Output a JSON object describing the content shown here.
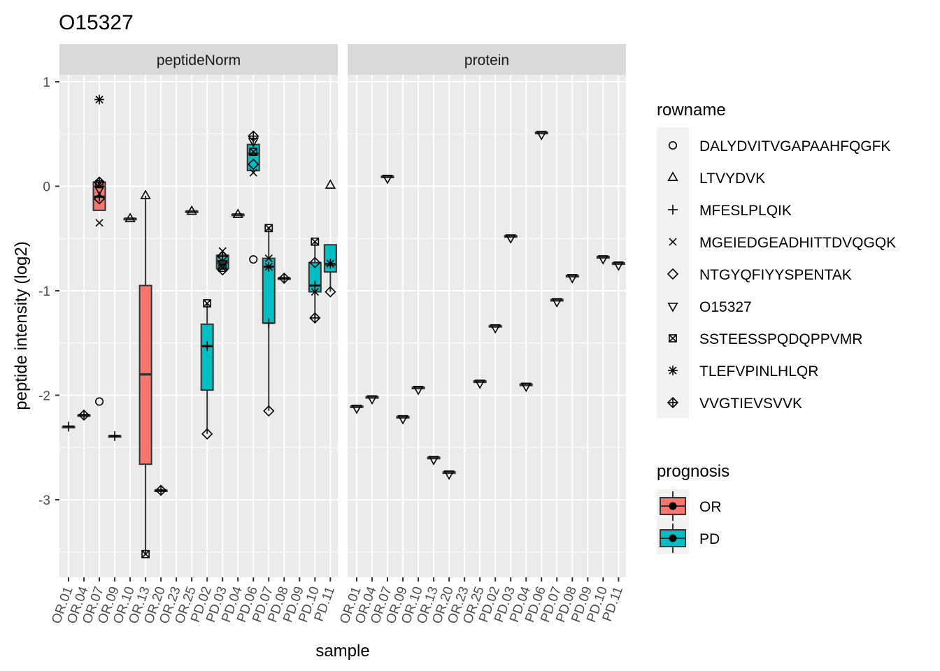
{
  "chart_data": {
    "type": "boxplot",
    "title": "O15327",
    "xlabel": "sample",
    "ylabel": "peptide intensity (log2)",
    "ylim": [
      -3.7,
      1.1
    ],
    "yticks": [
      1,
      0,
      -1,
      -2,
      -3
    ],
    "categories": [
      "OR.01",
      "OR.04",
      "OR.07",
      "OR.09",
      "OR.10",
      "OR.13",
      "OR.20",
      "OR.23",
      "OR.25",
      "PD.02",
      "PD.03",
      "PD.04",
      "PD.06",
      "PD.07",
      "PD.08",
      "PD.09",
      "PD.10",
      "PD.11"
    ],
    "panels": [
      "peptideNorm",
      "protein"
    ],
    "legend_rowname": {
      "title": "rowname",
      "items": [
        {
          "label": "DALYDVITVGAPAAHFQGFK",
          "shape": "circle"
        },
        {
          "label": "LTVYDVK",
          "shape": "triangle-up"
        },
        {
          "label": "MFESLPLQIK",
          "shape": "plus"
        },
        {
          "label": "MGEIEDGEADHITTDVQGQK",
          "shape": "cross"
        },
        {
          "label": "NTGYQFIYYSPENTAK",
          "shape": "diamond"
        },
        {
          "label": "O15327",
          "shape": "triangle-down"
        },
        {
          "label": "SSTEESSPQDQPPVMR",
          "shape": "square-cross"
        },
        {
          "label": "TLEFVPINLHLQR",
          "shape": "asterisk"
        },
        {
          "label": "VVGTIEVSVVK",
          "shape": "diamond-plus"
        }
      ]
    },
    "legend_prognosis": {
      "title": "prognosis",
      "items": [
        {
          "label": "OR",
          "color": "#F8766D"
        },
        {
          "label": "PD",
          "color": "#00BFC4"
        }
      ]
    },
    "peptideNorm_boxes": [
      {
        "sample": "OR.01",
        "group": "OR",
        "lo": -2.3,
        "q1": -2.3,
        "med": -2.3,
        "q3": -2.3,
        "hi": -2.3
      },
      {
        "sample": "OR.04",
        "group": "OR",
        "lo": -2.19,
        "q1": -2.19,
        "med": -2.19,
        "q3": -2.19,
        "hi": -2.19
      },
      {
        "sample": "OR.07",
        "group": "OR",
        "lo": -0.23,
        "q1": -0.23,
        "med": -0.1,
        "q3": 0.04,
        "hi": 0.04
      },
      {
        "sample": "OR.09",
        "group": "OR",
        "lo": -2.39,
        "q1": -2.39,
        "med": -2.39,
        "q3": -2.39,
        "hi": -2.39
      },
      {
        "sample": "OR.10",
        "group": "OR",
        "lo": -0.31,
        "q1": -0.31,
        "med": -0.31,
        "q3": -0.31,
        "hi": -0.31
      },
      {
        "sample": "OR.13",
        "group": "OR",
        "lo": -3.52,
        "q1": -2.66,
        "med": -1.8,
        "q3": -0.95,
        "hi": -0.09
      },
      {
        "sample": "OR.20",
        "group": "OR",
        "lo": -2.91,
        "q1": -2.91,
        "med": -2.91,
        "q3": -2.91,
        "hi": -2.91
      },
      {
        "sample": "OR.25",
        "group": "OR",
        "lo": -0.24,
        "q1": -0.24,
        "med": -0.24,
        "q3": -0.24,
        "hi": -0.24
      },
      {
        "sample": "PD.02",
        "group": "PD",
        "lo": -2.37,
        "q1": -1.95,
        "med": -1.53,
        "q3": -1.32,
        "hi": -1.12
      },
      {
        "sample": "PD.03",
        "group": "PD",
        "lo": -0.8,
        "q1": -0.79,
        "med": -0.73,
        "q3": -0.66,
        "hi": -0.62
      },
      {
        "sample": "PD.04",
        "group": "PD",
        "lo": -0.27,
        "q1": -0.27,
        "med": -0.27,
        "q3": -0.27,
        "hi": -0.27
      },
      {
        "sample": "PD.06",
        "group": "PD",
        "lo": 0.13,
        "q1": 0.15,
        "med": 0.31,
        "q3": 0.4,
        "hi": 0.48
      },
      {
        "sample": "PD.07",
        "group": "PD",
        "lo": -2.15,
        "q1": -1.31,
        "med": -0.77,
        "q3": -0.69,
        "hi": -0.4
      },
      {
        "sample": "PD.08",
        "group": "PD",
        "lo": -0.88,
        "q1": -0.88,
        "med": -0.88,
        "q3": -0.88,
        "hi": -0.88
      },
      {
        "sample": "PD.10",
        "group": "PD",
        "lo": -1.26,
        "q1": -1.01,
        "med": -0.95,
        "q3": -0.73,
        "hi": -0.53
      },
      {
        "sample": "PD.11",
        "group": "PD",
        "lo": -1.01,
        "q1": -0.82,
        "med": -0.75,
        "q3": -0.56,
        "hi": -0.56
      }
    ],
    "peptideNorm_points": [
      {
        "sample": "OR.01",
        "shape": "plus",
        "y": -2.3
      },
      {
        "sample": "OR.04",
        "shape": "diamond-plus",
        "y": -2.19
      },
      {
        "sample": "OR.07",
        "shape": "asterisk",
        "y": 0.83
      },
      {
        "sample": "OR.07",
        "shape": "diamond-plus",
        "y": 0.04
      },
      {
        "sample": "OR.07",
        "shape": "square-cross",
        "y": 0.02
      },
      {
        "sample": "OR.07",
        "shape": "triangle-down",
        "y": -0.03
      },
      {
        "sample": "OR.07",
        "shape": "plus",
        "y": -0.1
      },
      {
        "sample": "OR.07",
        "shape": "diamond",
        "y": -0.12
      },
      {
        "sample": "OR.07",
        "shape": "cross",
        "y": -0.35
      },
      {
        "sample": "OR.07",
        "shape": "circle",
        "y": -2.06
      },
      {
        "sample": "OR.09",
        "shape": "plus",
        "y": -2.39
      },
      {
        "sample": "OR.10",
        "shape": "triangle-up",
        "y": -0.31
      },
      {
        "sample": "OR.13",
        "shape": "triangle-up",
        "y": -0.09
      },
      {
        "sample": "OR.13",
        "shape": "square-cross",
        "y": -3.52
      },
      {
        "sample": "OR.20",
        "shape": "diamond-plus",
        "y": -2.91
      },
      {
        "sample": "OR.25",
        "shape": "triangle-up",
        "y": -0.24
      },
      {
        "sample": "PD.02",
        "shape": "square-cross",
        "y": -1.12
      },
      {
        "sample": "PD.02",
        "shape": "plus",
        "y": -1.53
      },
      {
        "sample": "PD.02",
        "shape": "diamond",
        "y": -2.37
      },
      {
        "sample": "PD.03",
        "shape": "cross",
        "y": -0.62
      },
      {
        "sample": "PD.03",
        "shape": "diamond-plus",
        "y": -0.67
      },
      {
        "sample": "PD.03",
        "shape": "triangle-down",
        "y": -0.74
      },
      {
        "sample": "PD.03",
        "shape": "square-cross",
        "y": -0.78
      },
      {
        "sample": "PD.03",
        "shape": "diamond",
        "y": -0.8
      },
      {
        "sample": "PD.04",
        "shape": "triangle-up",
        "y": -0.27
      },
      {
        "sample": "PD.06",
        "shape": "diamond-plus",
        "y": 0.48
      },
      {
        "sample": "PD.06",
        "shape": "triangle-down",
        "y": 0.43
      },
      {
        "sample": "PD.06",
        "shape": "square-cross",
        "y": 0.33
      },
      {
        "sample": "PD.06",
        "shape": "diamond",
        "y": 0.21
      },
      {
        "sample": "PD.06",
        "shape": "cross",
        "y": 0.13
      },
      {
        "sample": "PD.06",
        "shape": "circle",
        "y": -0.7
      },
      {
        "sample": "PD.07",
        "shape": "square-cross",
        "y": -0.4
      },
      {
        "sample": "PD.07",
        "shape": "cross",
        "y": -0.69
      },
      {
        "sample": "PD.07",
        "shape": "asterisk",
        "y": -0.77
      },
      {
        "sample": "PD.07",
        "shape": "plus",
        "y": -1.31
      },
      {
        "sample": "PD.07",
        "shape": "diamond",
        "y": -2.15
      },
      {
        "sample": "PD.08",
        "shape": "diamond-plus",
        "y": -0.88
      },
      {
        "sample": "PD.10",
        "shape": "square-cross",
        "y": -0.53
      },
      {
        "sample": "PD.10",
        "shape": "diamond",
        "y": -0.73
      },
      {
        "sample": "PD.10",
        "shape": "plus",
        "y": -0.95
      },
      {
        "sample": "PD.10",
        "shape": "cross",
        "y": -1.01
      },
      {
        "sample": "PD.10",
        "shape": "diamond-plus",
        "y": -1.26
      },
      {
        "sample": "PD.11",
        "shape": "triangle-up",
        "y": 0.01
      },
      {
        "sample": "PD.11",
        "shape": "asterisk",
        "y": -0.74
      },
      {
        "sample": "PD.11",
        "shape": "diamond",
        "y": -1.01
      }
    ],
    "protein_points": [
      {
        "sample": "OR.01",
        "group": "OR",
        "y": -2.11
      },
      {
        "sample": "OR.04",
        "group": "OR",
        "y": -2.02
      },
      {
        "sample": "OR.07",
        "group": "OR",
        "y": 0.09
      },
      {
        "sample": "OR.09",
        "group": "OR",
        "y": -2.21
      },
      {
        "sample": "OR.10",
        "group": "OR",
        "y": -1.93
      },
      {
        "sample": "OR.13",
        "group": "OR",
        "y": -2.6
      },
      {
        "sample": "OR.20",
        "group": "OR",
        "y": -2.74
      },
      {
        "sample": "OR.25",
        "group": "OR",
        "y": -1.87
      },
      {
        "sample": "PD.02",
        "group": "PD",
        "y": -1.34
      },
      {
        "sample": "PD.03",
        "group": "PD",
        "y": -0.48
      },
      {
        "sample": "PD.04",
        "group": "PD",
        "y": -1.9
      },
      {
        "sample": "PD.06",
        "group": "PD",
        "y": 0.51
      },
      {
        "sample": "PD.07",
        "group": "PD",
        "y": -1.09
      },
      {
        "sample": "PD.08",
        "group": "PD",
        "y": -0.86
      },
      {
        "sample": "PD.10",
        "group": "PD",
        "y": -0.68
      },
      {
        "sample": "PD.11",
        "group": "PD",
        "y": -0.74
      }
    ]
  }
}
